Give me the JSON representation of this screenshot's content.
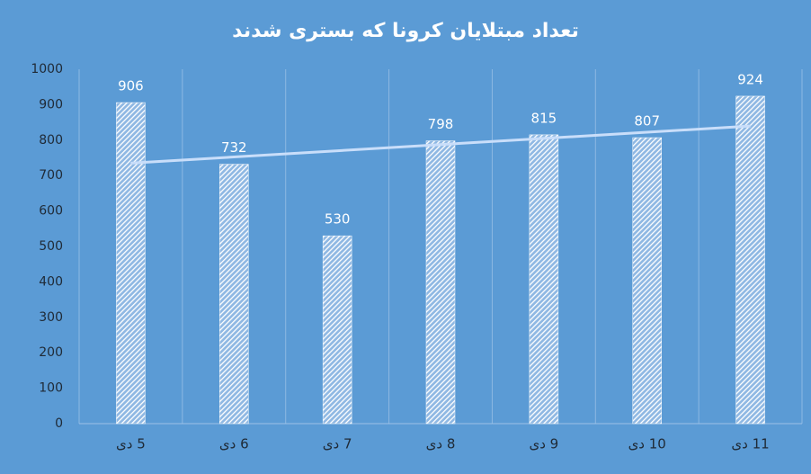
{
  "chart_data": {
    "type": "bar",
    "title": "تعداد مبتلایان کرونا که بستری شدند",
    "categories": [
      "5 دی",
      "6 دی",
      "7 دی",
      "8 دی",
      "9 دی",
      "10 دی",
      "11 دی"
    ],
    "values": [
      906,
      732,
      530,
      798,
      815,
      807,
      924
    ],
    "color": "#ffffff",
    "ylim": [
      0,
      1000
    ],
    "yticks": [
      0,
      100,
      200,
      300,
      400,
      500,
      600,
      700,
      800,
      900,
      1000
    ],
    "trendline": "linear",
    "data_labels": true
  }
}
